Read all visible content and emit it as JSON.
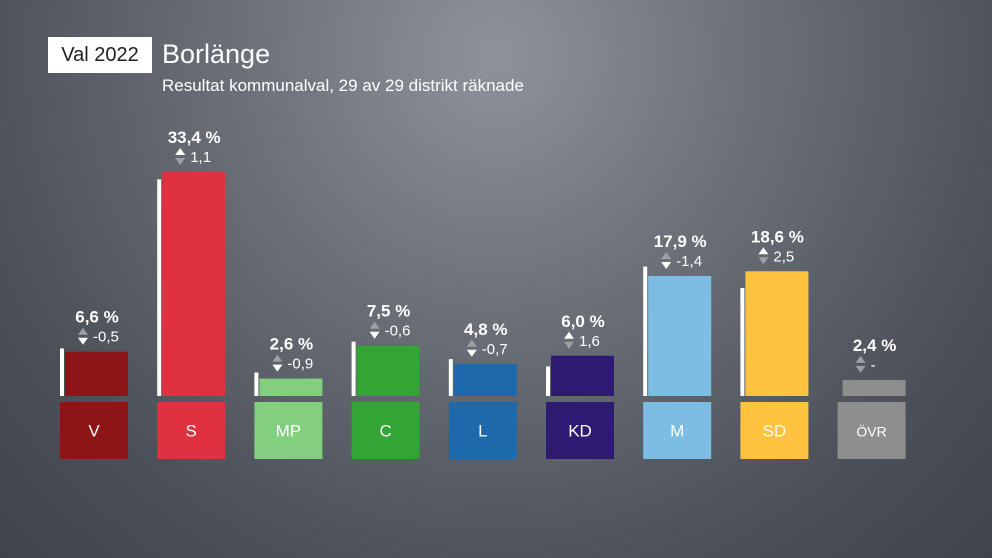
{
  "badge": "Val 2022",
  "title": "Borlänge",
  "subtitle": "Resultat kommunalval, 29 av 29 distrikt räknade",
  "chart_data": {
    "type": "bar",
    "categories": [
      "V",
      "S",
      "MP",
      "C",
      "L",
      "KD",
      "M",
      "SD",
      "ÖVR"
    ],
    "values": [
      6.6,
      33.4,
      2.6,
      7.5,
      4.8,
      6.0,
      17.9,
      18.6,
      2.4
    ],
    "previous_values": [
      7.1,
      32.3,
      3.5,
      8.1,
      5.5,
      4.4,
      19.3,
      16.1,
      null
    ],
    "value_labels": [
      "6,6 %",
      "33,4 %",
      "2,6 %",
      "7,5 %",
      "4,8 %",
      "6,0 %",
      "17,9 %",
      "18,6 %",
      "2,4 %"
    ],
    "change_labels": [
      "-0,5",
      "1,1",
      "-0,9",
      "-0,6",
      "-0,7",
      "1,6",
      "-1,4",
      "2,5",
      "-"
    ],
    "change_direction": [
      "down",
      "up",
      "down",
      "down",
      "down",
      "up",
      "down",
      "up",
      "none"
    ],
    "colors": [
      "#8d1417",
      "#e03141",
      "#83cf80",
      "#32a534",
      "#1e69ab",
      "#2f1a73",
      "#7dbde3",
      "#fdc23e",
      "#8e8e8e"
    ],
    "ylim": [
      0,
      34
    ]
  }
}
